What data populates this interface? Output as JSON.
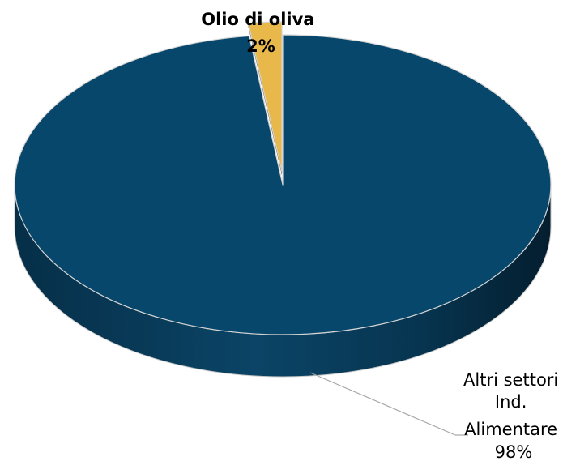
{
  "chart_data": {
    "type": "pie",
    "style": "3d-exploded",
    "categories": [
      "Altri settori Ind. Alimentare",
      "Olio di oliva"
    ],
    "values": [
      98,
      2
    ],
    "colors": [
      "#07476b",
      "#e8b84a"
    ],
    "data_labels": [
      {
        "lines": [
          "Altri settori",
          "Ind.",
          "Alimentare",
          "98%"
        ],
        "bold": false
      },
      {
        "lines": [
          "Olio di oliva",
          "2%"
        ],
        "bold": true
      }
    ],
    "exploded_slice": "Olio di oliva",
    "legend": "none"
  }
}
